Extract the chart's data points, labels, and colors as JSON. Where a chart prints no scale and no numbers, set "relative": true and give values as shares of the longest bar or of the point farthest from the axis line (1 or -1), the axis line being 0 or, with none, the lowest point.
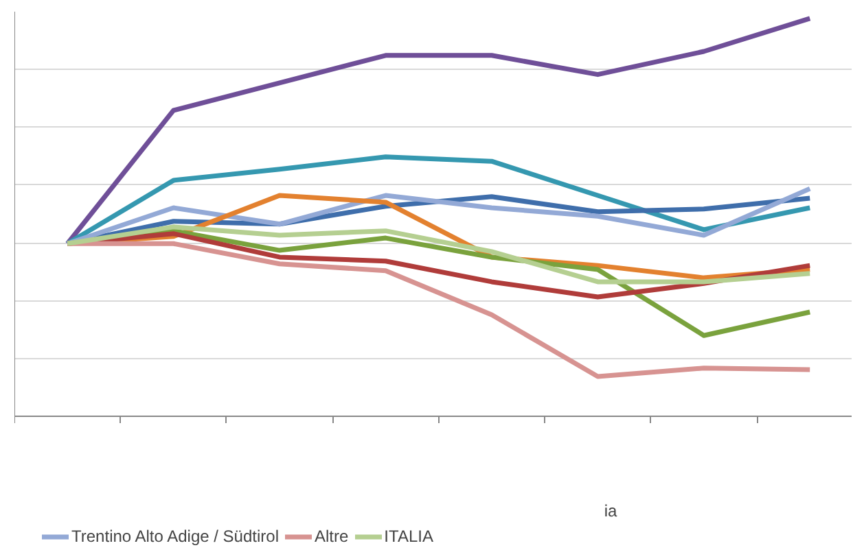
{
  "chart_data": {
    "type": "line",
    "relative": true,
    "grid": "y",
    "legend": "bottom",
    "line_style": "solid",
    "categories": [
      null,
      null,
      null,
      null,
      null,
      null,
      null,
      null
    ],
    "annotations": [
      "ia"
    ],
    "series": [
      {
        "color": "#6f4f98",
        "values": [
          0.434,
          0.769,
          0.838,
          0.907,
          0.907,
          0.859,
          0.917,
          1.0
        ]
      },
      {
        "color": "#3598b0",
        "values": [
          0.434,
          0.593,
          0.621,
          0.652,
          0.641,
          0.555,
          0.469,
          0.524
        ]
      },
      {
        "color": "#3f6eab",
        "values": [
          0.434,
          0.49,
          0.483,
          0.528,
          0.552,
          0.514,
          0.521,
          0.548
        ]
      },
      {
        "name": "Trentino Alto Adige / Südtirol",
        "color": "#93a9d6",
        "values": [
          0.434,
          0.524,
          0.483,
          0.555,
          0.524,
          0.503,
          0.455,
          0.572
        ]
      },
      {
        "color": "#e3812f",
        "values": [
          0.434,
          0.452,
          0.555,
          0.538,
          0.4,
          0.379,
          0.348,
          0.369
        ]
      },
      {
        "color": "#7aa23d",
        "values": [
          0.434,
          0.466,
          0.417,
          0.448,
          0.4,
          0.369,
          0.203,
          0.262
        ]
      },
      {
        "color": "#b03c3a",
        "values": [
          0.434,
          0.459,
          0.4,
          0.39,
          0.338,
          0.3,
          0.334,
          0.379
        ]
      },
      {
        "name": "Altre",
        "color": "#d79391",
        "values": [
          0.434,
          0.434,
          0.383,
          0.366,
          0.255,
          0.1,
          0.121,
          0.117
        ]
      },
      {
        "name": "ITALIA",
        "color": "#b5cf91",
        "values": [
          0.434,
          0.476,
          0.455,
          0.466,
          0.414,
          0.338,
          0.338,
          0.359
        ]
      }
    ]
  }
}
